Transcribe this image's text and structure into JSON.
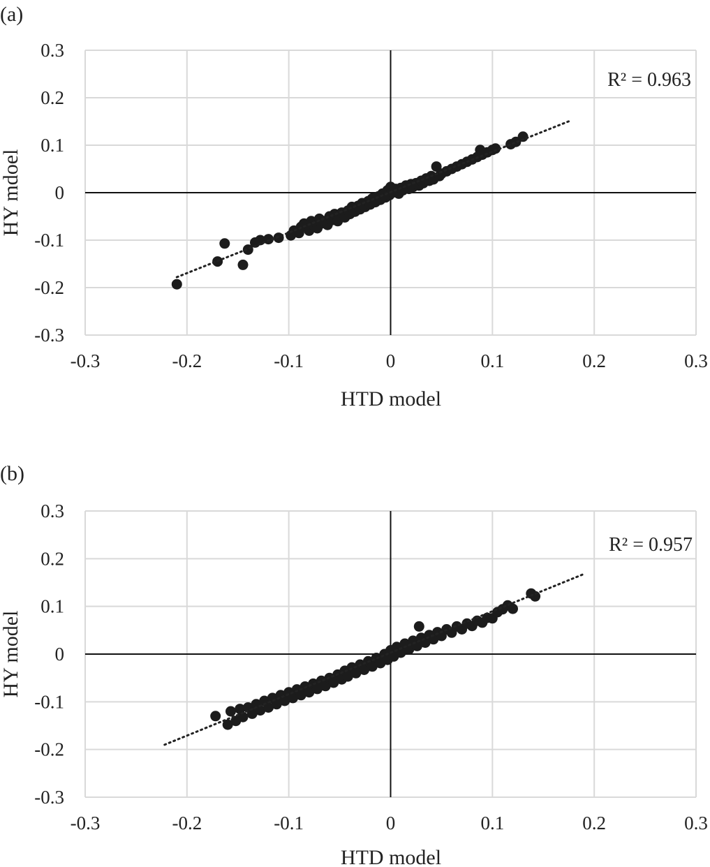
{
  "chart_data": [
    {
      "type": "scatter",
      "panel_label": "(a)",
      "xlabel": "HTD model",
      "ylabel": "HY mdoel",
      "xlim": [
        -0.3,
        0.3
      ],
      "ylim": [
        -0.3,
        0.3
      ],
      "xticks": [
        "-0.3",
        "-0.2",
        "-0.1",
        "0",
        "0.1",
        "0.2",
        "0.3"
      ],
      "yticks": [
        "0.3",
        "0.2",
        "0.1",
        "0",
        "-0.1",
        "-0.2",
        "-0.3"
      ],
      "grid": true,
      "trendline": {
        "style": "dotted",
        "x": [
          -0.21,
          0.177
        ],
        "y": [
          -0.178,
          0.152
        ]
      },
      "annotation": "R² = 0.963",
      "points": [
        [
          -0.21,
          -0.193
        ],
        [
          -0.17,
          -0.145
        ],
        [
          -0.163,
          -0.107
        ],
        [
          -0.145,
          -0.152
        ],
        [
          -0.14,
          -0.12
        ],
        [
          -0.133,
          -0.105
        ],
        [
          -0.128,
          -0.1
        ],
        [
          -0.12,
          -0.098
        ],
        [
          -0.11,
          -0.095
        ],
        [
          -0.098,
          -0.09
        ],
        [
          -0.095,
          -0.08
        ],
        [
          -0.09,
          -0.085
        ],
        [
          -0.088,
          -0.072
        ],
        [
          -0.085,
          -0.065
        ],
        [
          -0.08,
          -0.08
        ],
        [
          -0.078,
          -0.06
        ],
        [
          -0.075,
          -0.07
        ],
        [
          -0.072,
          -0.075
        ],
        [
          -0.07,
          -0.055
        ],
        [
          -0.068,
          -0.065
        ],
        [
          -0.065,
          -0.06
        ],
        [
          -0.062,
          -0.068
        ],
        [
          -0.06,
          -0.05
        ],
        [
          -0.058,
          -0.058
        ],
        [
          -0.055,
          -0.045
        ],
        [
          -0.052,
          -0.06
        ],
        [
          -0.05,
          -0.048
        ],
        [
          -0.048,
          -0.042
        ],
        [
          -0.045,
          -0.052
        ],
        [
          -0.042,
          -0.038
        ],
        [
          -0.04,
          -0.045
        ],
        [
          -0.038,
          -0.03
        ],
        [
          -0.035,
          -0.04
        ],
        [
          -0.032,
          -0.028
        ],
        [
          -0.03,
          -0.035
        ],
        [
          -0.028,
          -0.022
        ],
        [
          -0.025,
          -0.03
        ],
        [
          -0.022,
          -0.018
        ],
        [
          -0.02,
          -0.025
        ],
        [
          -0.018,
          -0.012
        ],
        [
          -0.015,
          -0.02
        ],
        [
          -0.012,
          -0.008
        ],
        [
          -0.01,
          -0.015
        ],
        [
          -0.008,
          -0.002
        ],
        [
          -0.005,
          -0.01
        ],
        [
          -0.003,
          0.005
        ],
        [
          -0.001,
          -0.005
        ],
        [
          0.0,
          0.012
        ],
        [
          0.002,
          0.0
        ],
        [
          0.005,
          0.008
        ],
        [
          0.008,
          -0.002
        ],
        [
          0.01,
          0.01
        ],
        [
          0.012,
          0.005
        ],
        [
          0.015,
          0.015
        ],
        [
          0.018,
          0.008
        ],
        [
          0.02,
          0.018
        ],
        [
          0.022,
          0.012
        ],
        [
          0.025,
          0.02
        ],
        [
          0.028,
          0.015
        ],
        [
          0.03,
          0.025
        ],
        [
          0.032,
          0.02
        ],
        [
          0.035,
          0.03
        ],
        [
          0.038,
          0.025
        ],
        [
          0.04,
          0.035
        ],
        [
          0.042,
          0.028
        ],
        [
          0.045,
          0.055
        ],
        [
          0.048,
          0.035
        ],
        [
          0.05,
          0.04
        ],
        [
          0.055,
          0.045
        ],
        [
          0.06,
          0.05
        ],
        [
          0.065,
          0.055
        ],
        [
          0.07,
          0.06
        ],
        [
          0.075,
          0.065
        ],
        [
          0.08,
          0.07
        ],
        [
          0.085,
          0.075
        ],
        [
          0.088,
          0.09
        ],
        [
          0.09,
          0.08
        ],
        [
          0.095,
          0.085
        ],
        [
          0.1,
          0.09
        ],
        [
          0.103,
          0.093
        ],
        [
          0.118,
          0.102
        ],
        [
          0.123,
          0.107
        ],
        [
          0.13,
          0.118
        ]
      ]
    },
    {
      "type": "scatter",
      "panel_label": "(b)",
      "xlabel": "HTD model",
      "ylabel": "HY model",
      "xlim": [
        -0.3,
        0.3
      ],
      "ylim": [
        -0.3,
        0.3
      ],
      "xticks": [
        "-0.3",
        "-0.2",
        "-0.1",
        "0",
        "0.1",
        "0.2",
        "0.3"
      ],
      "yticks": [
        "0.3",
        "0.2",
        "0.1",
        "0",
        "-0.1",
        "-0.2",
        "-0.3"
      ],
      "grid": true,
      "trendline": {
        "style": "dotted",
        "x": [
          -0.222,
          0.19
        ],
        "y": [
          -0.19,
          0.168
        ]
      },
      "annotation": "R² = 0.957",
      "points": [
        [
          -0.172,
          -0.13
        ],
        [
          -0.16,
          -0.148
        ],
        [
          -0.157,
          -0.12
        ],
        [
          -0.152,
          -0.14
        ],
        [
          -0.148,
          -0.115
        ],
        [
          -0.145,
          -0.132
        ],
        [
          -0.14,
          -0.112
        ],
        [
          -0.136,
          -0.125
        ],
        [
          -0.132,
          -0.105
        ],
        [
          -0.128,
          -0.118
        ],
        [
          -0.124,
          -0.098
        ],
        [
          -0.12,
          -0.112
        ],
        [
          -0.116,
          -0.092
        ],
        [
          -0.112,
          -0.105
        ],
        [
          -0.108,
          -0.086
        ],
        [
          -0.104,
          -0.098
        ],
        [
          -0.1,
          -0.08
        ],
        [
          -0.096,
          -0.092
        ],
        [
          -0.092,
          -0.074
        ],
        [
          -0.088,
          -0.086
        ],
        [
          -0.084,
          -0.068
        ],
        [
          -0.08,
          -0.08
        ],
        [
          -0.076,
          -0.062
        ],
        [
          -0.072,
          -0.073
        ],
        [
          -0.068,
          -0.056
        ],
        [
          -0.064,
          -0.067
        ],
        [
          -0.06,
          -0.05
        ],
        [
          -0.056,
          -0.06
        ],
        [
          -0.052,
          -0.043
        ],
        [
          -0.048,
          -0.053
        ],
        [
          -0.045,
          -0.035
        ],
        [
          -0.042,
          -0.047
        ],
        [
          -0.038,
          -0.028
        ],
        [
          -0.034,
          -0.04
        ],
        [
          -0.03,
          -0.022
        ],
        [
          -0.026,
          -0.033
        ],
        [
          -0.022,
          -0.015
        ],
        [
          -0.018,
          -0.026
        ],
        [
          -0.014,
          -0.008
        ],
        [
          -0.01,
          -0.019
        ],
        [
          -0.006,
          0.0
        ],
        [
          -0.003,
          -0.012
        ],
        [
          0.0,
          0.008
        ],
        [
          0.003,
          -0.005
        ],
        [
          0.006,
          0.015
        ],
        [
          0.01,
          0.003
        ],
        [
          0.014,
          0.022
        ],
        [
          0.018,
          0.01
        ],
        [
          0.022,
          0.028
        ],
        [
          0.026,
          0.017
        ],
        [
          0.028,
          0.058
        ],
        [
          0.03,
          0.034
        ],
        [
          0.034,
          0.024
        ],
        [
          0.038,
          0.04
        ],
        [
          0.042,
          0.031
        ],
        [
          0.046,
          0.046
        ],
        [
          0.05,
          0.038
        ],
        [
          0.055,
          0.052
        ],
        [
          0.06,
          0.045
        ],
        [
          0.065,
          0.058
        ],
        [
          0.07,
          0.052
        ],
        [
          0.075,
          0.064
        ],
        [
          0.08,
          0.059
        ],
        [
          0.085,
          0.07
        ],
        [
          0.09,
          0.066
        ],
        [
          0.095,
          0.076
        ],
        [
          0.1,
          0.075
        ],
        [
          0.105,
          0.088
        ],
        [
          0.11,
          0.094
        ],
        [
          0.115,
          0.102
        ],
        [
          0.12,
          0.095
        ],
        [
          0.138,
          0.127
        ],
        [
          0.142,
          0.121
        ]
      ]
    }
  ]
}
